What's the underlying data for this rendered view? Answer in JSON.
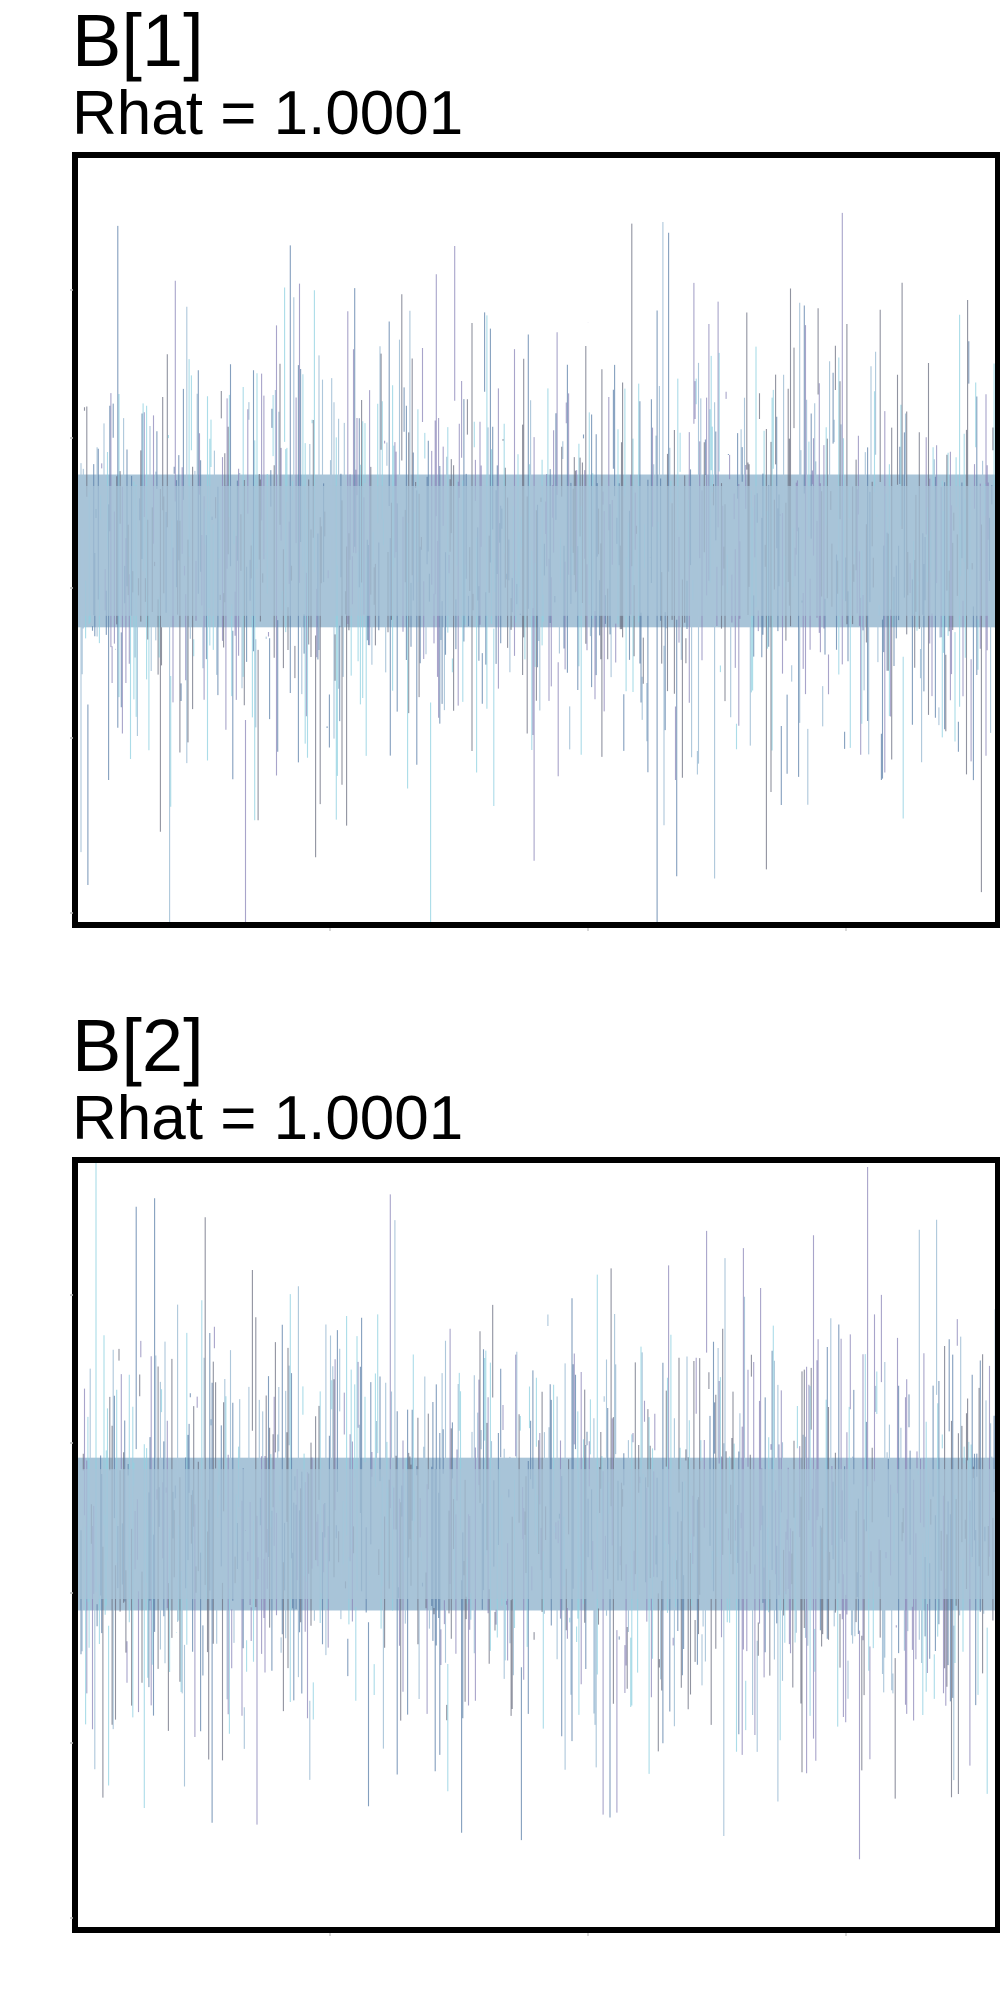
{
  "chart_data": [
    {
      "type": "line",
      "title": "B[1]",
      "subtitle": "Rhat = 1.0001",
      "xlabel": "",
      "ylabel": "",
      "grid": false,
      "legend": "none",
      "series_colors": [
        "#a9c4d9",
        "#5b7fa8",
        "#6b6f80",
        "#8b86b8",
        "#8fd0e0"
      ],
      "band_color": "#a8c4d8",
      "trace": {
        "center": 0,
        "typical_sd": 1,
        "band_half_width_sd": 0.7,
        "ylim": [
          -3.4,
          3.6
        ]
      }
    },
    {
      "type": "line",
      "title": "B[2]",
      "subtitle": "Rhat = 1.0001",
      "xlabel": "",
      "ylabel": "",
      "grid": false,
      "legend": "none",
      "series_colors": [
        "#a9c4d9",
        "#5b7fa8",
        "#6b6f80",
        "#8b86b8",
        "#8fd0e0"
      ],
      "band_color": "#a8c4d8",
      "trace": {
        "center": 0,
        "typical_sd": 1,
        "band_half_width_sd": 0.7,
        "ylim": [
          -3.6,
          3.4
        ]
      }
    }
  ]
}
